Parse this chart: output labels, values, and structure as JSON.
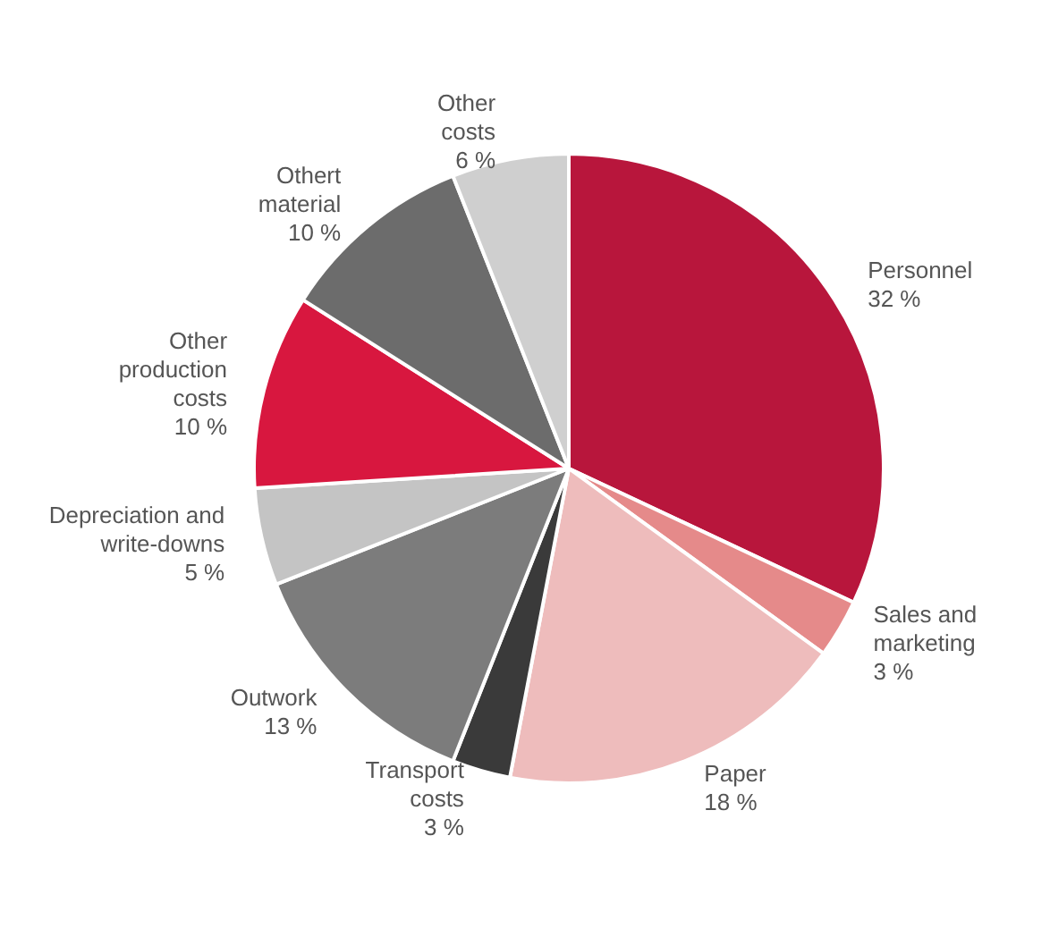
{
  "chart_data": {
    "type": "pie",
    "categories": [
      "Personnel",
      "Sales and marketing",
      "Paper",
      "Transport costs",
      "Outwork",
      "Depreciation and write-downs",
      "Other production costs",
      "Othert material",
      "Other costs"
    ],
    "values": [
      32,
      3,
      18,
      3,
      13,
      5,
      10,
      10,
      6
    ],
    "value_labels": [
      "32 %",
      "3 %",
      "18 %",
      "3 %",
      "13 %",
      "5 %",
      "10 %",
      "10 %",
      "6 %"
    ],
    "colors": [
      "#b8163c",
      "#e58a8a",
      "#eebcbc",
      "#3a3a3a",
      "#7c7c7c",
      "#c4c4c4",
      "#d8173f",
      "#6c6c6c",
      "#cfcfcf"
    ],
    "legend": false
  }
}
